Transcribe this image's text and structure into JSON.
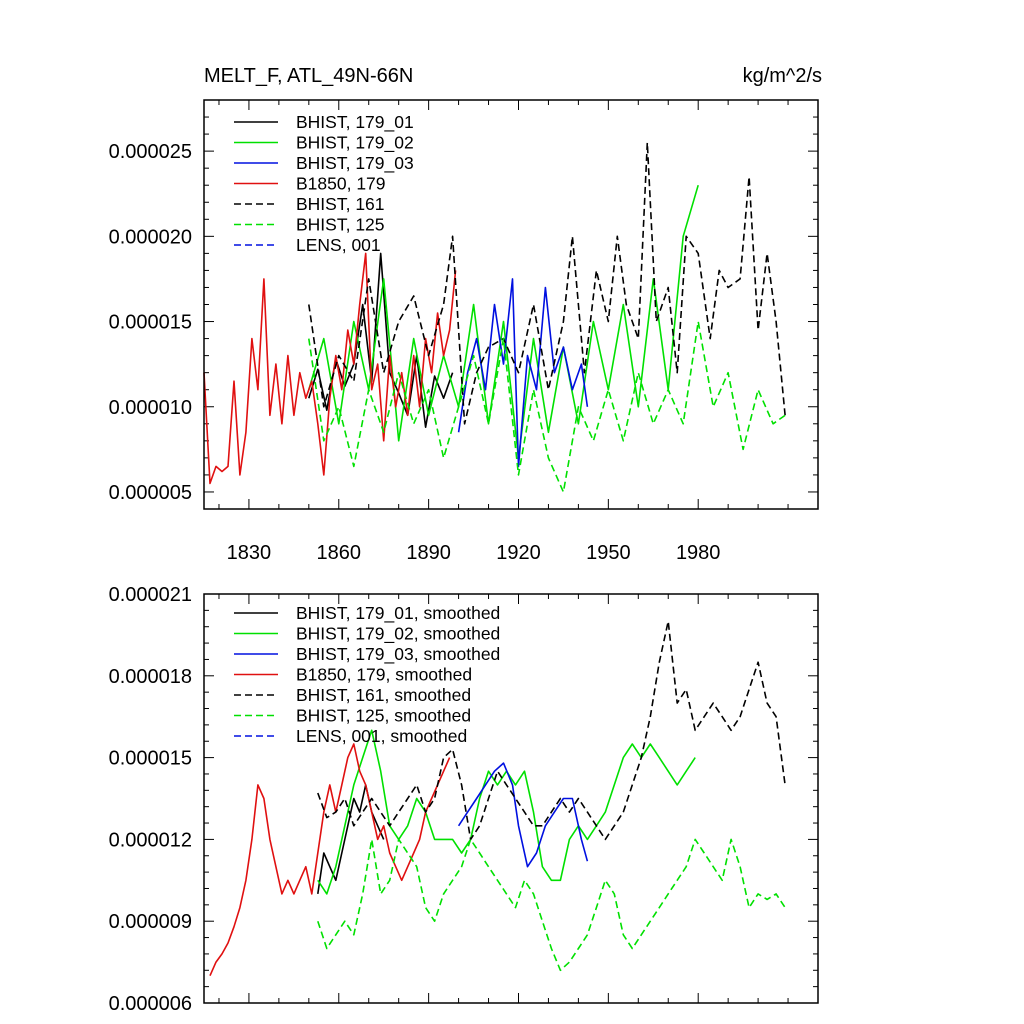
{
  "chart_data": [
    {
      "type": "line",
      "title": "MELT_F, ATL_49N-66N",
      "units": "kg/m^2/s",
      "xlim": [
        1815,
        2020
      ],
      "ylim": [
        4e-06,
        2.8e-05
      ],
      "x_ticks": [
        1830,
        1860,
        1890,
        1920,
        1950,
        1980
      ],
      "x_tick_labels": [
        "1830",
        "1860",
        "1890",
        "1920",
        "1950",
        "1980"
      ],
      "y_ticks": [
        5e-06,
        1e-05,
        1.5e-05,
        2e-05,
        2.5e-05
      ],
      "y_tick_labels": [
        "0.000005",
        "0.000010",
        "0.000015",
        "0.000020",
        "0.000025"
      ],
      "legend_position": "top-left",
      "series": [
        {
          "name": "BHIST, 179_01",
          "color": "#000000",
          "dash": "solid",
          "x": [
            1850,
            1853,
            1856,
            1859,
            1862,
            1865,
            1868,
            1871,
            1874,
            1877,
            1880,
            1883,
            1886,
            1889,
            1892,
            1895,
            1898
          ],
          "y": [
            1.05e-05,
            1.22e-05,
            9.8e-06,
            1.28e-05,
            1.12e-05,
            1.25e-05,
            1.6e-05,
            1.15e-05,
            1.9e-05,
            1.2e-05,
            1.08e-05,
            9.5e-06,
            1.3e-05,
            8.8e-06,
            1.18e-05,
            1.05e-05,
            1.2e-05
          ]
        },
        {
          "name": "BHIST, 179_02",
          "color": "#00e000",
          "dash": "solid",
          "x": [
            1850,
            1855,
            1860,
            1865,
            1870,
            1875,
            1880,
            1885,
            1890,
            1895,
            1900,
            1905,
            1910,
            1915,
            1920,
            1925,
            1930,
            1935,
            1940,
            1945,
            1950,
            1955,
            1960,
            1965,
            1970,
            1975,
            1980
          ],
          "y": [
            1.1e-05,
            1.4e-05,
            9e-06,
            1.5e-05,
            1.1e-05,
            1.75e-05,
            8e-06,
            1.4e-05,
            9.5e-06,
            1.3e-05,
            1e-05,
            1.6e-05,
            9e-06,
            1.5e-05,
            7e-06,
            1.4e-05,
            8.5e-06,
            1.35e-05,
            9e-06,
            1.5e-05,
            1.1e-05,
            1.6e-05,
            1e-05,
            1.75e-05,
            1.1e-05,
            2e-05,
            2.3e-05
          ]
        },
        {
          "name": "BHIST, 179_03",
          "color": "#0010e0",
          "dash": "solid",
          "x": [
            1900,
            1903,
            1906,
            1909,
            1912,
            1915,
            1918,
            1920,
            1923,
            1926,
            1929,
            1932,
            1935,
            1938,
            1941,
            1943
          ],
          "y": [
            8.5e-06,
            1.2e-05,
            1.4e-05,
            1.1e-05,
            1.6e-05,
            1.25e-05,
            1.75e-05,
            6.5e-06,
            1.3e-05,
            1.1e-05,
            1.7e-05,
            1.2e-05,
            1.35e-05,
            1.1e-05,
            1.25e-05,
            1e-05
          ]
        },
        {
          "name": "B1850, 179",
          "color": "#e01010",
          "dash": "solid",
          "x": [
            1815,
            1817,
            1819,
            1821,
            1823,
            1825,
            1827,
            1829,
            1831,
            1833,
            1835,
            1837,
            1839,
            1841,
            1843,
            1845,
            1847,
            1849,
            1851,
            1853,
            1855,
            1857,
            1859,
            1861,
            1863,
            1865,
            1867,
            1869,
            1871,
            1873,
            1875,
            1877,
            1879,
            1881,
            1883,
            1885,
            1887,
            1889,
            1891,
            1893,
            1895,
            1897,
            1899
          ],
          "y": [
            1.2e-05,
            5.5e-06,
            6.5e-06,
            6.2e-06,
            6.5e-06,
            1.15e-05,
            6e-06,
            8.5e-06,
            1.4e-05,
            1.1e-05,
            1.75e-05,
            9.5e-06,
            1.25e-05,
            9e-06,
            1.3e-05,
            9.5e-06,
            1.2e-05,
            1.05e-05,
            1.15e-05,
            9e-06,
            6e-06,
            1.05e-05,
            1.3e-05,
            1.1e-05,
            1.45e-05,
            1.25e-05,
            1.6e-05,
            1.9e-05,
            1.1e-05,
            1.25e-05,
            8e-06,
            1.3e-05,
            1e-05,
            1.2e-05,
            9.5e-06,
            1.3e-05,
            1e-05,
            1.4e-05,
            1.2e-05,
            1.55e-05,
            1.3e-05,
            1.45e-05,
            1.8e-05
          ]
        },
        {
          "name": "BHIST, 161",
          "color": "#000000",
          "dash": "dashed",
          "x": [
            1850,
            1855,
            1860,
            1865,
            1870,
            1875,
            1880,
            1885,
            1890,
            1895,
            1898,
            1902,
            1906,
            1910,
            1915,
            1920,
            1925,
            1930,
            1935,
            1938,
            1942,
            1946,
            1950,
            1953,
            1956,
            1960,
            1963,
            1966,
            1970,
            1973,
            1976,
            1980,
            1984,
            1987,
            1990,
            1994,
            1997,
            2000,
            2003,
            2006,
            2009
          ],
          "y": [
            1.6e-05,
            1e-05,
            1.3e-05,
            1.15e-05,
            1.75e-05,
            1.2e-05,
            1.5e-05,
            1.65e-05,
            1.3e-05,
            1.6e-05,
            2e-05,
            9e-06,
            1.2e-05,
            1.35e-05,
            1.4e-05,
            1.2e-05,
            1.6e-05,
            1.1e-05,
            1.5e-05,
            2e-05,
            1.2e-05,
            1.8e-05,
            1.5e-05,
            2e-05,
            1.6e-05,
            1.4e-05,
            2.55e-05,
            1.5e-05,
            1.7e-05,
            1.2e-05,
            2e-05,
            1.9e-05,
            1.4e-05,
            1.8e-05,
            1.7e-05,
            1.75e-05,
            2.35e-05,
            1.45e-05,
            1.9e-05,
            1.5e-05,
            9.5e-06
          ]
        },
        {
          "name": "BHIST, 125",
          "color": "#00e000",
          "dash": "dashed",
          "x": [
            1850,
            1855,
            1860,
            1865,
            1870,
            1875,
            1880,
            1885,
            1890,
            1895,
            1900,
            1905,
            1910,
            1915,
            1920,
            1925,
            1930,
            1935,
            1940,
            1945,
            1950,
            1955,
            1960,
            1965,
            1970,
            1975,
            1980,
            1985,
            1990,
            1995,
            2000,
            2005,
            2009
          ],
          "y": [
            1.4e-05,
            8e-06,
            1e-05,
            6.5e-06,
            1.1e-05,
            8.5e-06,
            1.2e-05,
            9e-06,
            1.1e-05,
            7e-06,
            1e-05,
            1.3e-05,
            9e-06,
            1.4e-05,
            6e-06,
            1.1e-05,
            7e-06,
            5e-06,
            1e-05,
            8e-06,
            1.1e-05,
            8e-06,
            1.2e-05,
            9e-06,
            1.1e-05,
            9e-06,
            1.5e-05,
            1e-05,
            1.2e-05,
            7.5e-06,
            1.1e-05,
            9e-06,
            9.5e-06
          ]
        },
        {
          "name": "LENS, 001",
          "color": "#0010e0",
          "dash": "dashed",
          "x": [],
          "y": []
        }
      ]
    },
    {
      "type": "line",
      "xlim": [
        1815,
        2020
      ],
      "ylim": [
        6e-06,
        2.1e-05
      ],
      "x_ticks": [
        1830,
        1860,
        1890,
        1920,
        1950,
        1980
      ],
      "y_ticks": [
        6e-06,
        9e-06,
        1.2e-05,
        1.5e-05,
        1.8e-05,
        2.1e-05
      ],
      "y_tick_labels": [
        "0.000006",
        "0.000009",
        "0.000012",
        "0.000015",
        "0.000018",
        "0.000021"
      ],
      "legend_position": "top-left",
      "series": [
        {
          "name": "BHIST, 179_01, smoothed",
          "color": "#000000",
          "dash": "solid",
          "x": [
            1853,
            1855,
            1857,
            1859,
            1861,
            1863,
            1865,
            1867,
            1869,
            1871,
            1873,
            1875
          ],
          "y": [
            1e-05,
            1.15e-05,
            1.1e-05,
            1.05e-05,
            1.15e-05,
            1.25e-05,
            1.35e-05,
            1.3e-05,
            1.4e-05,
            1.3e-05,
            1.25e-05,
            1.2e-05
          ]
        },
        {
          "name": "BHIST, 179_02, smoothed",
          "color": "#00e000",
          "dash": "solid",
          "x": [
            1853,
            1856,
            1859,
            1862,
            1865,
            1868,
            1871,
            1874,
            1877,
            1880,
            1883,
            1886,
            1889,
            1892,
            1895,
            1898,
            1901,
            1904,
            1907,
            1910,
            1913,
            1916,
            1919,
            1922,
            1925,
            1928,
            1931,
            1934,
            1937,
            1940,
            1943,
            1946,
            1949,
            1952,
            1955,
            1958,
            1961,
            1964,
            1967,
            1970,
            1973,
            1976,
            1979
          ],
          "y": [
            1.05e-05,
            1e-05,
            1.1e-05,
            1.25e-05,
            1.4e-05,
            1.5e-05,
            1.6e-05,
            1.45e-05,
            1.25e-05,
            1.2e-05,
            1.25e-05,
            1.35e-05,
            1.3e-05,
            1.2e-05,
            1.2e-05,
            1.2e-05,
            1.15e-05,
            1.2e-05,
            1.35e-05,
            1.45e-05,
            1.4e-05,
            1.45e-05,
            1.4e-05,
            1.45e-05,
            1.3e-05,
            1.1e-05,
            1.05e-05,
            1.05e-05,
            1.2e-05,
            1.25e-05,
            1.2e-05,
            1.25e-05,
            1.3e-05,
            1.4e-05,
            1.5e-05,
            1.55e-05,
            1.5e-05,
            1.55e-05,
            1.5e-05,
            1.45e-05,
            1.4e-05,
            1.45e-05,
            1.5e-05
          ]
        },
        {
          "name": "BHIST, 179_03, smoothed",
          "color": "#0010e0",
          "dash": "solid",
          "x": [
            1900,
            1903,
            1906,
            1909,
            1912,
            1915,
            1918,
            1920,
            1923,
            1926,
            1929,
            1932,
            1935,
            1938,
            1941,
            1943
          ],
          "y": [
            1.25e-05,
            1.3e-05,
            1.35e-05,
            1.4e-05,
            1.45e-05,
            1.48e-05,
            1.4e-05,
            1.25e-05,
            1.1e-05,
            1.15e-05,
            1.25e-05,
            1.3e-05,
            1.35e-05,
            1.35e-05,
            1.2e-05,
            1.12e-05
          ]
        },
        {
          "name": "B1850, 179, smoothed",
          "color": "#e01010",
          "dash": "solid",
          "x": [
            1817,
            1819,
            1821,
            1823,
            1825,
            1827,
            1829,
            1831,
            1833,
            1835,
            1837,
            1839,
            1841,
            1843,
            1845,
            1847,
            1849,
            1851,
            1853,
            1855,
            1857,
            1859,
            1861,
            1863,
            1865,
            1867,
            1869,
            1871,
            1873,
            1875,
            1877,
            1879,
            1881,
            1883,
            1885,
            1887,
            1889,
            1891,
            1893,
            1895,
            1897
          ],
          "y": [
            7e-06,
            7.5e-06,
            7.8e-06,
            8.2e-06,
            8.8e-06,
            9.5e-06,
            1.05e-05,
            1.2e-05,
            1.4e-05,
            1.35e-05,
            1.2e-05,
            1.1e-05,
            1e-05,
            1.05e-05,
            1e-05,
            1.05e-05,
            1.1e-05,
            1e-05,
            1.15e-05,
            1.3e-05,
            1.4e-05,
            1.3e-05,
            1.4e-05,
            1.5e-05,
            1.55e-05,
            1.45e-05,
            1.4e-05,
            1.3e-05,
            1.2e-05,
            1.25e-05,
            1.15e-05,
            1.1e-05,
            1.05e-05,
            1.1e-05,
            1.15e-05,
            1.2e-05,
            1.3e-05,
            1.35e-05,
            1.4e-05,
            1.45e-05,
            1.5e-05
          ]
        },
        {
          "name": "BHIST, 161, smoothed",
          "color": "#000000",
          "dash": "dashed",
          "x": [
            1853,
            1856,
            1859,
            1862,
            1865,
            1868,
            1871,
            1874,
            1877,
            1880,
            1883,
            1886,
            1889,
            1892,
            1895,
            1898,
            1901,
            1904,
            1907,
            1910,
            1913,
            1916,
            1919,
            1922,
            1925,
            1928,
            1931,
            1934,
            1937,
            1940,
            1943,
            1946,
            1949,
            1952,
            1955,
            1958,
            1961,
            1964,
            1967,
            1970,
            1973,
            1976,
            1979,
            1982,
            1985,
            1988,
            1991,
            1994,
            1997,
            2000,
            2003,
            2006,
            2009
          ],
          "y": [
            1.37e-05,
            1.28e-05,
            1.3e-05,
            1.35e-05,
            1.25e-05,
            1.3e-05,
            1.35e-05,
            1.3e-05,
            1.25e-05,
            1.3e-05,
            1.35e-05,
            1.4e-05,
            1.3e-05,
            1.35e-05,
            1.5e-05,
            1.53e-05,
            1.4e-05,
            1.2e-05,
            1.25e-05,
            1.35e-05,
            1.45e-05,
            1.4e-05,
            1.35e-05,
            1.3e-05,
            1.25e-05,
            1.25e-05,
            1.3e-05,
            1.35e-05,
            1.3e-05,
            1.35e-05,
            1.3e-05,
            1.25e-05,
            1.2e-05,
            1.25e-05,
            1.3e-05,
            1.4e-05,
            1.5e-05,
            1.65e-05,
            1.85e-05,
            2e-05,
            1.7e-05,
            1.75e-05,
            1.6e-05,
            1.65e-05,
            1.7e-05,
            1.65e-05,
            1.6e-05,
            1.65e-05,
            1.75e-05,
            1.85e-05,
            1.7e-05,
            1.65e-05,
            1.4e-05
          ]
        },
        {
          "name": "BHIST, 125, smoothed",
          "color": "#00e000",
          "dash": "dashed",
          "x": [
            1853,
            1856,
            1859,
            1862,
            1865,
            1868,
            1871,
            1874,
            1877,
            1880,
            1883,
            1886,
            1889,
            1892,
            1895,
            1898,
            1901,
            1904,
            1907,
            1910,
            1913,
            1916,
            1919,
            1922,
            1925,
            1928,
            1931,
            1934,
            1937,
            1940,
            1943,
            1946,
            1949,
            1952,
            1955,
            1958,
            1961,
            1964,
            1967,
            1970,
            1973,
            1976,
            1979,
            1982,
            1985,
            1988,
            1991,
            1994,
            1997,
            2000,
            2003,
            2006,
            2009
          ],
          "y": [
            9e-06,
            8e-06,
            8.5e-06,
            9e-06,
            8.5e-06,
            1e-05,
            1.2e-05,
            1e-05,
            1.05e-05,
            1.2e-05,
            1.15e-05,
            1.1e-05,
            9.5e-06,
            9e-06,
            1e-05,
            1.05e-05,
            1.1e-05,
            1.2e-05,
            1.15e-05,
            1.1e-05,
            1.05e-05,
            1e-05,
            9.5e-06,
            1.05e-05,
            1e-05,
            9e-06,
            8e-06,
            7.2e-06,
            7.5e-06,
            8e-06,
            8.5e-06,
            9.5e-06,
            1.05e-05,
            1e-05,
            8.5e-06,
            8e-06,
            8.5e-06,
            9e-06,
            9.5e-06,
            1e-05,
            1.05e-05,
            1.1e-05,
            1.2e-05,
            1.15e-05,
            1.1e-05,
            1.05e-05,
            1.2e-05,
            1.1e-05,
            9.5e-06,
            1e-05,
            9.8e-06,
            1e-05,
            9.5e-06
          ]
        },
        {
          "name": "LENS, 001, smoothed",
          "color": "#0010e0",
          "dash": "dashed",
          "x": [],
          "y": []
        }
      ]
    }
  ]
}
